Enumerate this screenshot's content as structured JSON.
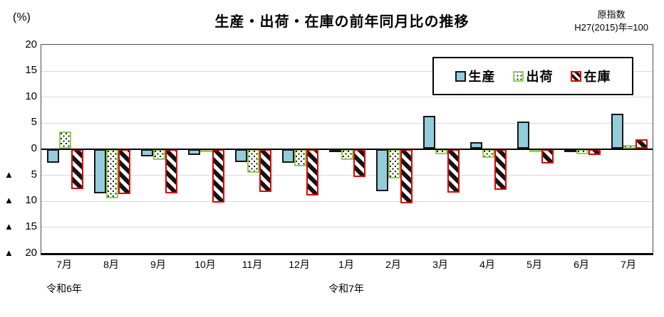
{
  "title": "生産・出荷・在庫の前年同月比の推移",
  "unit_label": "(%)",
  "index_note": {
    "line1": "原指数",
    "line2": "H27(2015)年=100"
  },
  "y_axis": {
    "ticks": [
      {
        "value": 20,
        "prefix": "",
        "number": "20"
      },
      {
        "value": 15,
        "prefix": "",
        "number": "15"
      },
      {
        "value": 10,
        "prefix": "",
        "number": "10"
      },
      {
        "value": 5,
        "prefix": "",
        "number": "5"
      },
      {
        "value": 0,
        "prefix": "",
        "number": "0"
      },
      {
        "value": -5,
        "prefix": "▲",
        "number": "5"
      },
      {
        "value": -10,
        "prefix": "▲",
        "number": "10"
      },
      {
        "value": -15,
        "prefix": "▲",
        "number": "15"
      },
      {
        "value": -20,
        "prefix": "▲",
        "number": "20"
      }
    ]
  },
  "chart_data": {
    "type": "bar",
    "title": "生産・出荷・在庫の前年同月比の推移",
    "ylabel": "(%)",
    "ylim": [
      -20,
      20
    ],
    "ytick_step": 5,
    "grid": true,
    "legend_position": "inside-top-right",
    "negative_marker": "▲",
    "categories": [
      "7月",
      "8月",
      "9月",
      "10月",
      "11月",
      "12月",
      "1月",
      "2月",
      "3月",
      "4月",
      "5月",
      "6月",
      "7月"
    ],
    "year_labels": [
      {
        "text": "令和6年",
        "month_index": 0
      },
      {
        "text": "令和7年",
        "month_index": 6
      }
    ],
    "series": [
      {
        "name": "生産",
        "key": "production",
        "style": "solid",
        "fill": "#92CDDC",
        "border": "#141414",
        "values": [
          -2.6,
          -8.5,
          -1.5,
          -1.2,
          -2.5,
          -2.7,
          -0.5,
          -8.1,
          6.3,
          1.3,
          5.3,
          -0.3,
          6.8
        ]
      },
      {
        "name": "出荷",
        "key": "shipment",
        "style": "dotted",
        "fill": "#FFFFFF",
        "border": "#92D050",
        "values": [
          3.4,
          -9.5,
          -2.1,
          -0.4,
          -4.6,
          -3.3,
          -2.1,
          -5.6,
          -1.0,
          -1.7,
          -0.4,
          -1.0,
          0.8
        ]
      },
      {
        "name": "在庫",
        "key": "inventory",
        "style": "diagonal",
        "fill": "#FFFFFF",
        "border": "#E00000",
        "values": [
          -7.7,
          -8.7,
          -8.5,
          -10.3,
          -8.3,
          -8.9,
          -5.4,
          -10.5,
          -8.4,
          -7.9,
          -2.8,
          -1.2,
          1.8
        ]
      }
    ]
  }
}
